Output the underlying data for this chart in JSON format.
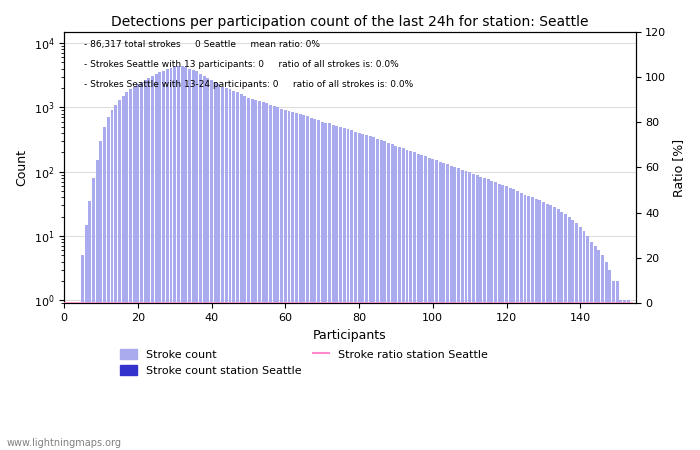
{
  "title": "Detections per participation count of the last 24h for station: Seattle",
  "xlabel": "Participants",
  "ylabel_left": "Count",
  "ylabel_right": "Ratio [%]",
  "annotation_lines": [
    "86,317 total strokes     0 Seattle     mean ratio: 0%",
    "Strokes Seattle with 13 participants: 0     ratio of all strokes is: 0.0%",
    "Strokes Seattle with 13-24 participants: 0     ratio of all strokes is: 0.0%"
  ],
  "bar_color_light": "#aaaaee",
  "bar_color_dark": "#3333cc",
  "line_color": "#ff88cc",
  "watermark": "www.lightningmaps.org",
  "xlim": [
    0,
    155
  ],
  "ylim_right": [
    0,
    120
  ],
  "bar_counts": [
    0,
    0,
    0,
    0,
    0,
    5,
    15,
    35,
    80,
    150,
    300,
    500,
    700,
    900,
    1100,
    1300,
    1500,
    1700,
    1900,
    2100,
    2300,
    2500,
    2700,
    2900,
    3100,
    3300,
    3500,
    3700,
    3900,
    4100,
    4300,
    4400,
    4300,
    4200,
    4000,
    3800,
    3600,
    3300,
    3100,
    2900,
    2700,
    2500,
    2300,
    2100,
    2000,
    1900,
    1800,
    1700,
    1600,
    1500,
    1400,
    1350,
    1300,
    1250,
    1200,
    1150,
    1100,
    1050,
    1000,
    950,
    900,
    870,
    840,
    810,
    780,
    750,
    720,
    690,
    660,
    630,
    600,
    580,
    560,
    540,
    520,
    500,
    480,
    460,
    440,
    420,
    400,
    385,
    370,
    355,
    340,
    325,
    310,
    295,
    280,
    265,
    250,
    240,
    230,
    220,
    210,
    200,
    190,
    182,
    174,
    166,
    158,
    150,
    143,
    136,
    130,
    124,
    118,
    113,
    108,
    103,
    98,
    93,
    88,
    84,
    80,
    76,
    72,
    68,
    65,
    62,
    59,
    56,
    53,
    50,
    47,
    44,
    42,
    40,
    38,
    36,
    34,
    32,
    30,
    28,
    26,
    24,
    22,
    20,
    18,
    16,
    14,
    12,
    10,
    8,
    7,
    6,
    5,
    4,
    3,
    2,
    2,
    1,
    1,
    1,
    0
  ],
  "station_counts": [
    0,
    0,
    0,
    0,
    0,
    0,
    0,
    0,
    0,
    0,
    0,
    0,
    0,
    0,
    0,
    0,
    0,
    0,
    0,
    0,
    0,
    0,
    0,
    0,
    0,
    0,
    0,
    0,
    0,
    0,
    0,
    0,
    0,
    0,
    0,
    0,
    0,
    0,
    0,
    0,
    0,
    0,
    0,
    0,
    0,
    0,
    0,
    0,
    0,
    0,
    0,
    0,
    0,
    0,
    0,
    0,
    0,
    0,
    0,
    0,
    0,
    0,
    0,
    0,
    0,
    0,
    0,
    0,
    0,
    0,
    0,
    0,
    0,
    0,
    0,
    0,
    0,
    0,
    0,
    0,
    0,
    0,
    0,
    0,
    0,
    0,
    0,
    0,
    0,
    0,
    0,
    0,
    0,
    0,
    0,
    0,
    0,
    0,
    0,
    0,
    0,
    0,
    0,
    0,
    0,
    0,
    0,
    0,
    0,
    0,
    0,
    0,
    0,
    0,
    0,
    0,
    0,
    0,
    0,
    0,
    0,
    0,
    0,
    0,
    0,
    0,
    0,
    0,
    0,
    0,
    0,
    0,
    0,
    0,
    0,
    0,
    0,
    0,
    0,
    0,
    0,
    0,
    0,
    0,
    0,
    0,
    0,
    0,
    0,
    0,
    0,
    0,
    0,
    0,
    0
  ],
  "ratio_values": [
    0,
    0,
    0,
    0,
    0,
    0,
    0,
    0,
    0,
    0,
    0,
    0,
    0,
    0,
    0,
    0,
    0,
    0,
    0,
    0,
    0,
    0,
    0,
    0,
    0,
    0,
    0,
    0,
    0,
    0,
    0,
    0,
    0,
    0,
    0,
    0,
    0,
    0,
    0,
    0,
    0,
    0,
    0,
    0,
    0,
    0,
    0,
    0,
    0,
    0,
    0,
    0,
    0,
    0,
    0,
    0,
    0,
    0,
    0,
    0,
    0,
    0,
    0,
    0,
    0,
    0,
    0,
    0,
    0,
    0,
    0,
    0,
    0,
    0,
    0,
    0,
    0,
    0,
    0,
    0,
    0,
    0,
    0,
    0,
    0,
    0,
    0,
    0,
    0,
    0,
    0,
    0,
    0,
    0,
    0,
    0,
    0,
    0,
    0,
    0,
    0,
    0,
    0,
    0,
    0,
    0,
    0,
    0,
    0,
    0,
    0,
    0,
    0,
    0,
    0,
    0,
    0,
    0,
    0,
    0,
    0,
    0,
    0,
    0,
    0,
    0,
    0,
    0,
    0,
    0,
    0,
    0,
    0,
    0,
    0,
    0,
    0,
    0,
    0,
    0,
    0,
    0,
    0,
    0,
    0,
    0,
    0,
    0,
    0,
    0,
    0,
    0,
    0,
    0,
    0
  ],
  "yticks_left": [
    1,
    10,
    100,
    1000,
    10000
  ],
  "ytick_labels_left": [
    "$10^0$",
    "$10^1$",
    "$10^2$",
    "$10^3$",
    "$10^4$"
  ],
  "xticks": [
    0,
    20,
    40,
    60,
    80,
    100,
    120,
    140
  ],
  "yticks_right": [
    0,
    20,
    40,
    60,
    80,
    100,
    120
  ],
  "figsize": [
    7.0,
    4.5
  ],
  "dpi": 100
}
